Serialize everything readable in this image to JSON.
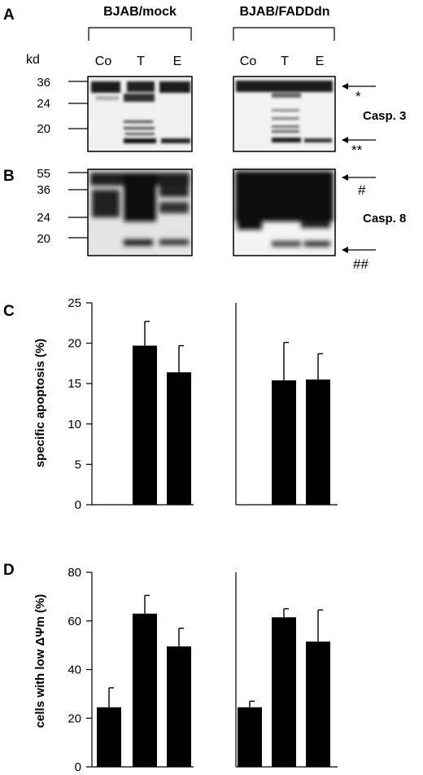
{
  "panels": {
    "a": "A",
    "b": "B",
    "c": "C",
    "d": "D"
  },
  "groups": {
    "mock": "BJAB/mock",
    "fadd": "BJAB/FADDdn"
  },
  "lanes": [
    "Co",
    "T",
    "E"
  ],
  "kd_label": "kd",
  "blot_a": {
    "markers": [
      "36",
      "24",
      "20"
    ],
    "label": "Casp. 3",
    "arrows": [
      "*",
      "**"
    ]
  },
  "blot_b": {
    "markers": [
      "55",
      "36",
      "24",
      "20"
    ],
    "label": "Casp. 8",
    "arrows": [
      "#",
      "##"
    ]
  },
  "chart_data": [
    {
      "type": "bar",
      "panel": "C",
      "ylabel": "specific apoptosis (%)",
      "ylim": [
        0,
        25
      ],
      "yticks": [
        0,
        5,
        10,
        15,
        20,
        25
      ],
      "categories": [
        "Co",
        "T",
        "E"
      ],
      "series": [
        {
          "values": [
            null,
            19.7,
            16.4
          ],
          "errors": [
            null,
            3.0,
            3.3
          ]
        },
        {
          "values": [
            null,
            15.4,
            15.5
          ],
          "errors": [
            null,
            4.7,
            3.2
          ]
        }
      ]
    },
    {
      "type": "bar",
      "panel": "D",
      "ylabel": "cells with low ΔΨm (%)",
      "ylim": [
        0,
        80
      ],
      "yticks": [
        0,
        20,
        40,
        60,
        80
      ],
      "categories": [
        "Co",
        "T",
        "E"
      ],
      "series": [
        {
          "values": [
            24.5,
            63.0,
            49.5
          ],
          "errors": [
            8.0,
            7.5,
            7.5
          ]
        },
        {
          "values": [
            24.5,
            61.5,
            51.5
          ],
          "errors": [
            2.5,
            3.5,
            13.0
          ]
        }
      ]
    }
  ]
}
